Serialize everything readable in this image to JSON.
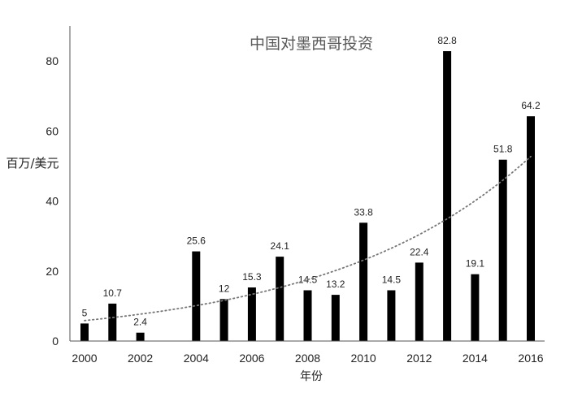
{
  "chart_data": {
    "type": "bar",
    "title": "中国对墨西哥投资",
    "xlabel": "年份",
    "ylabel": "百万/美元",
    "x": [
      2000,
      2001,
      2002,
      2004,
      2005,
      2006,
      2007,
      2008,
      2009,
      2010,
      2011,
      2012,
      2013,
      2014,
      2015,
      2016
    ],
    "values": [
      5,
      10.7,
      2.4,
      25.6,
      12,
      15.3,
      24.1,
      14.5,
      13.2,
      33.8,
      14.5,
      22.4,
      82.8,
      19.1,
      51.8,
      64.2
    ],
    "labels": [
      "5",
      "10.7",
      "2.4",
      "25.6",
      "12",
      "15.3",
      "24.1",
      "14.5",
      "13.2",
      "33.8",
      "14.5",
      "22.4",
      "82.8",
      "19.1",
      "51.8",
      "64.2"
    ],
    "xticks": [
      2000,
      2002,
      2004,
      2006,
      2008,
      2010,
      2012,
      2014,
      2016
    ],
    "xlim": [
      2000,
      2016
    ],
    "yticks": [
      0,
      20,
      40,
      60,
      80
    ],
    "ylim": [
      0,
      90
    ],
    "bar_color": "#000000",
    "trendline": {
      "type": "exponential",
      "style": "dotted",
      "color": "#777777"
    },
    "grid": false
  }
}
